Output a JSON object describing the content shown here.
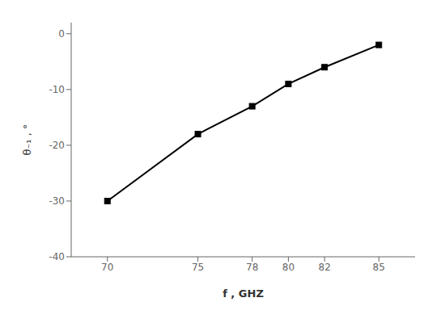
{
  "chart_data": {
    "type": "line",
    "x": [
      70,
      75,
      78,
      80,
      82,
      85
    ],
    "values": [
      -30,
      -18,
      -13,
      -9,
      -6,
      -2
    ],
    "xlim": [
      68,
      87
    ],
    "ylim": [
      -40,
      2
    ],
    "xticks": [
      70,
      75,
      78,
      80,
      82,
      85
    ],
    "yticks": [
      0,
      -10,
      -20,
      -30,
      -40
    ],
    "xlabel": "f  , GHZ",
    "ylabel": "θ₋₁ , °",
    "color": "#000000",
    "marker": "square",
    "grid": false
  }
}
